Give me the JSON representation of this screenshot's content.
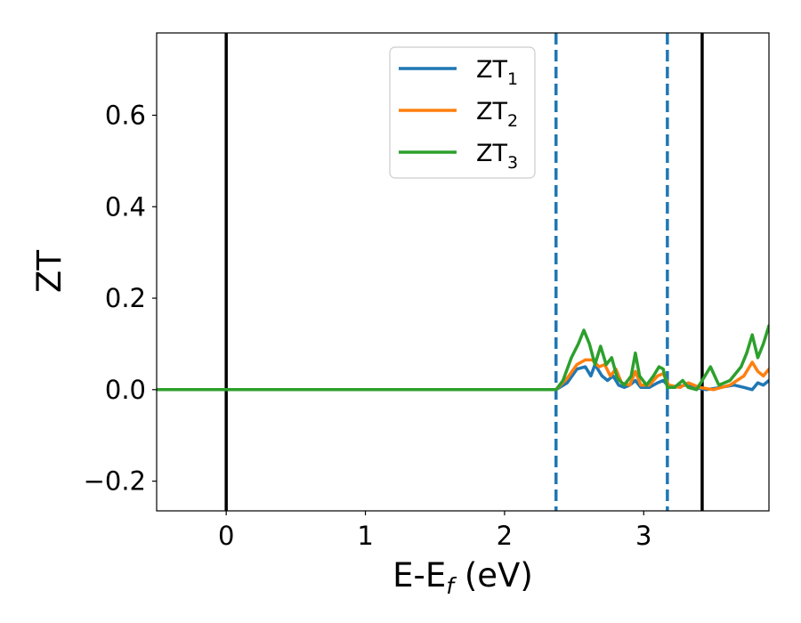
{
  "chart_data": {
    "type": "line",
    "xlabel_main": "E-E",
    "xlabel_sub": "f",
    "xlabel_unit": " (eV)",
    "ylabel": "ZT",
    "xlim": [
      -0.5,
      3.9
    ],
    "ylim": [
      -0.265,
      0.78
    ],
    "grid": false,
    "legend_placement": "top-center",
    "x_ticks": [
      0,
      1,
      2,
      3
    ],
    "x_tick_labels": [
      "0",
      "1",
      "2",
      "3"
    ],
    "y_ticks": [
      -0.2,
      0.0,
      0.2,
      0.4,
      0.6
    ],
    "y_tick_labels": [
      "−0.2",
      "0.0",
      "0.2",
      "0.4",
      "0.6"
    ],
    "vertical_lines": [
      {
        "x": 0.0,
        "style": "solid",
        "color": "#000000"
      },
      {
        "x": 2.37,
        "style": "dashed",
        "color": "#1f77b4"
      },
      {
        "x": 3.17,
        "style": "dashed",
        "color": "#1f77b4"
      },
      {
        "x": 3.42,
        "style": "solid",
        "color": "#000000"
      }
    ],
    "series": [
      {
        "name": "ZT",
        "sub": "1",
        "color": "#1f77b4",
        "points": [
          [
            -0.5,
            0.0
          ],
          [
            2.37,
            0.0
          ],
          [
            2.45,
            0.015
          ],
          [
            2.52,
            0.045
          ],
          [
            2.58,
            0.05
          ],
          [
            2.62,
            0.03
          ],
          [
            2.65,
            0.055
          ],
          [
            2.7,
            0.03
          ],
          [
            2.74,
            0.02
          ],
          [
            2.78,
            0.03
          ],
          [
            2.82,
            0.01
          ],
          [
            2.86,
            0.005
          ],
          [
            2.9,
            0.01
          ],
          [
            2.94,
            0.02
          ],
          [
            2.98,
            0.005
          ],
          [
            3.04,
            0.005
          ],
          [
            3.1,
            0.015
          ],
          [
            3.14,
            0.02
          ],
          [
            3.17,
            0.01
          ],
          [
            3.22,
            0.005
          ],
          [
            3.3,
            0.01
          ],
          [
            3.36,
            0.005
          ],
          [
            3.45,
            0.0
          ],
          [
            3.55,
            0.005
          ],
          [
            3.65,
            0.01
          ],
          [
            3.72,
            0.005
          ],
          [
            3.78,
            0.0
          ],
          [
            3.82,
            0.015
          ],
          [
            3.86,
            0.01
          ],
          [
            3.9,
            0.02
          ]
        ]
      },
      {
        "name": "ZT",
        "sub": "2",
        "color": "#ff7f0e",
        "points": [
          [
            -0.5,
            0.0
          ],
          [
            2.37,
            0.0
          ],
          [
            2.45,
            0.025
          ],
          [
            2.52,
            0.055
          ],
          [
            2.58,
            0.065
          ],
          [
            2.63,
            0.065
          ],
          [
            2.68,
            0.05
          ],
          [
            2.72,
            0.055
          ],
          [
            2.76,
            0.03
          ],
          [
            2.8,
            0.045
          ],
          [
            2.84,
            0.015
          ],
          [
            2.9,
            0.01
          ],
          [
            2.94,
            0.04
          ],
          [
            2.98,
            0.01
          ],
          [
            3.04,
            0.01
          ],
          [
            3.1,
            0.03
          ],
          [
            3.14,
            0.035
          ],
          [
            3.18,
            0.01
          ],
          [
            3.26,
            0.005
          ],
          [
            3.32,
            0.015
          ],
          [
            3.4,
            0.005
          ],
          [
            3.5,
            0.0
          ],
          [
            3.62,
            0.01
          ],
          [
            3.72,
            0.03
          ],
          [
            3.78,
            0.06
          ],
          [
            3.82,
            0.04
          ],
          [
            3.86,
            0.03
          ],
          [
            3.9,
            0.045
          ]
        ]
      },
      {
        "name": "ZT",
        "sub": "3",
        "color": "#2ca02c",
        "points": [
          [
            -0.5,
            0.0
          ],
          [
            2.37,
            0.0
          ],
          [
            2.42,
            0.02
          ],
          [
            2.48,
            0.07
          ],
          [
            2.53,
            0.1
          ],
          [
            2.57,
            0.13
          ],
          [
            2.61,
            0.1
          ],
          [
            2.65,
            0.055
          ],
          [
            2.69,
            0.095
          ],
          [
            2.73,
            0.055
          ],
          [
            2.77,
            0.07
          ],
          [
            2.81,
            0.025
          ],
          [
            2.86,
            0.01
          ],
          [
            2.91,
            0.03
          ],
          [
            2.94,
            0.08
          ],
          [
            2.97,
            0.03
          ],
          [
            3.02,
            0.01
          ],
          [
            3.07,
            0.03
          ],
          [
            3.11,
            0.05
          ],
          [
            3.14,
            0.045
          ],
          [
            3.17,
            0.005
          ],
          [
            3.22,
            0.005
          ],
          [
            3.28,
            0.02
          ],
          [
            3.32,
            0.005
          ],
          [
            3.38,
            0.0
          ],
          [
            3.44,
            0.03
          ],
          [
            3.48,
            0.05
          ],
          [
            3.54,
            0.01
          ],
          [
            3.62,
            0.02
          ],
          [
            3.7,
            0.05
          ],
          [
            3.74,
            0.08
          ],
          [
            3.78,
            0.12
          ],
          [
            3.82,
            0.07
          ],
          [
            3.86,
            0.1
          ],
          [
            3.9,
            0.14
          ]
        ]
      }
    ]
  }
}
